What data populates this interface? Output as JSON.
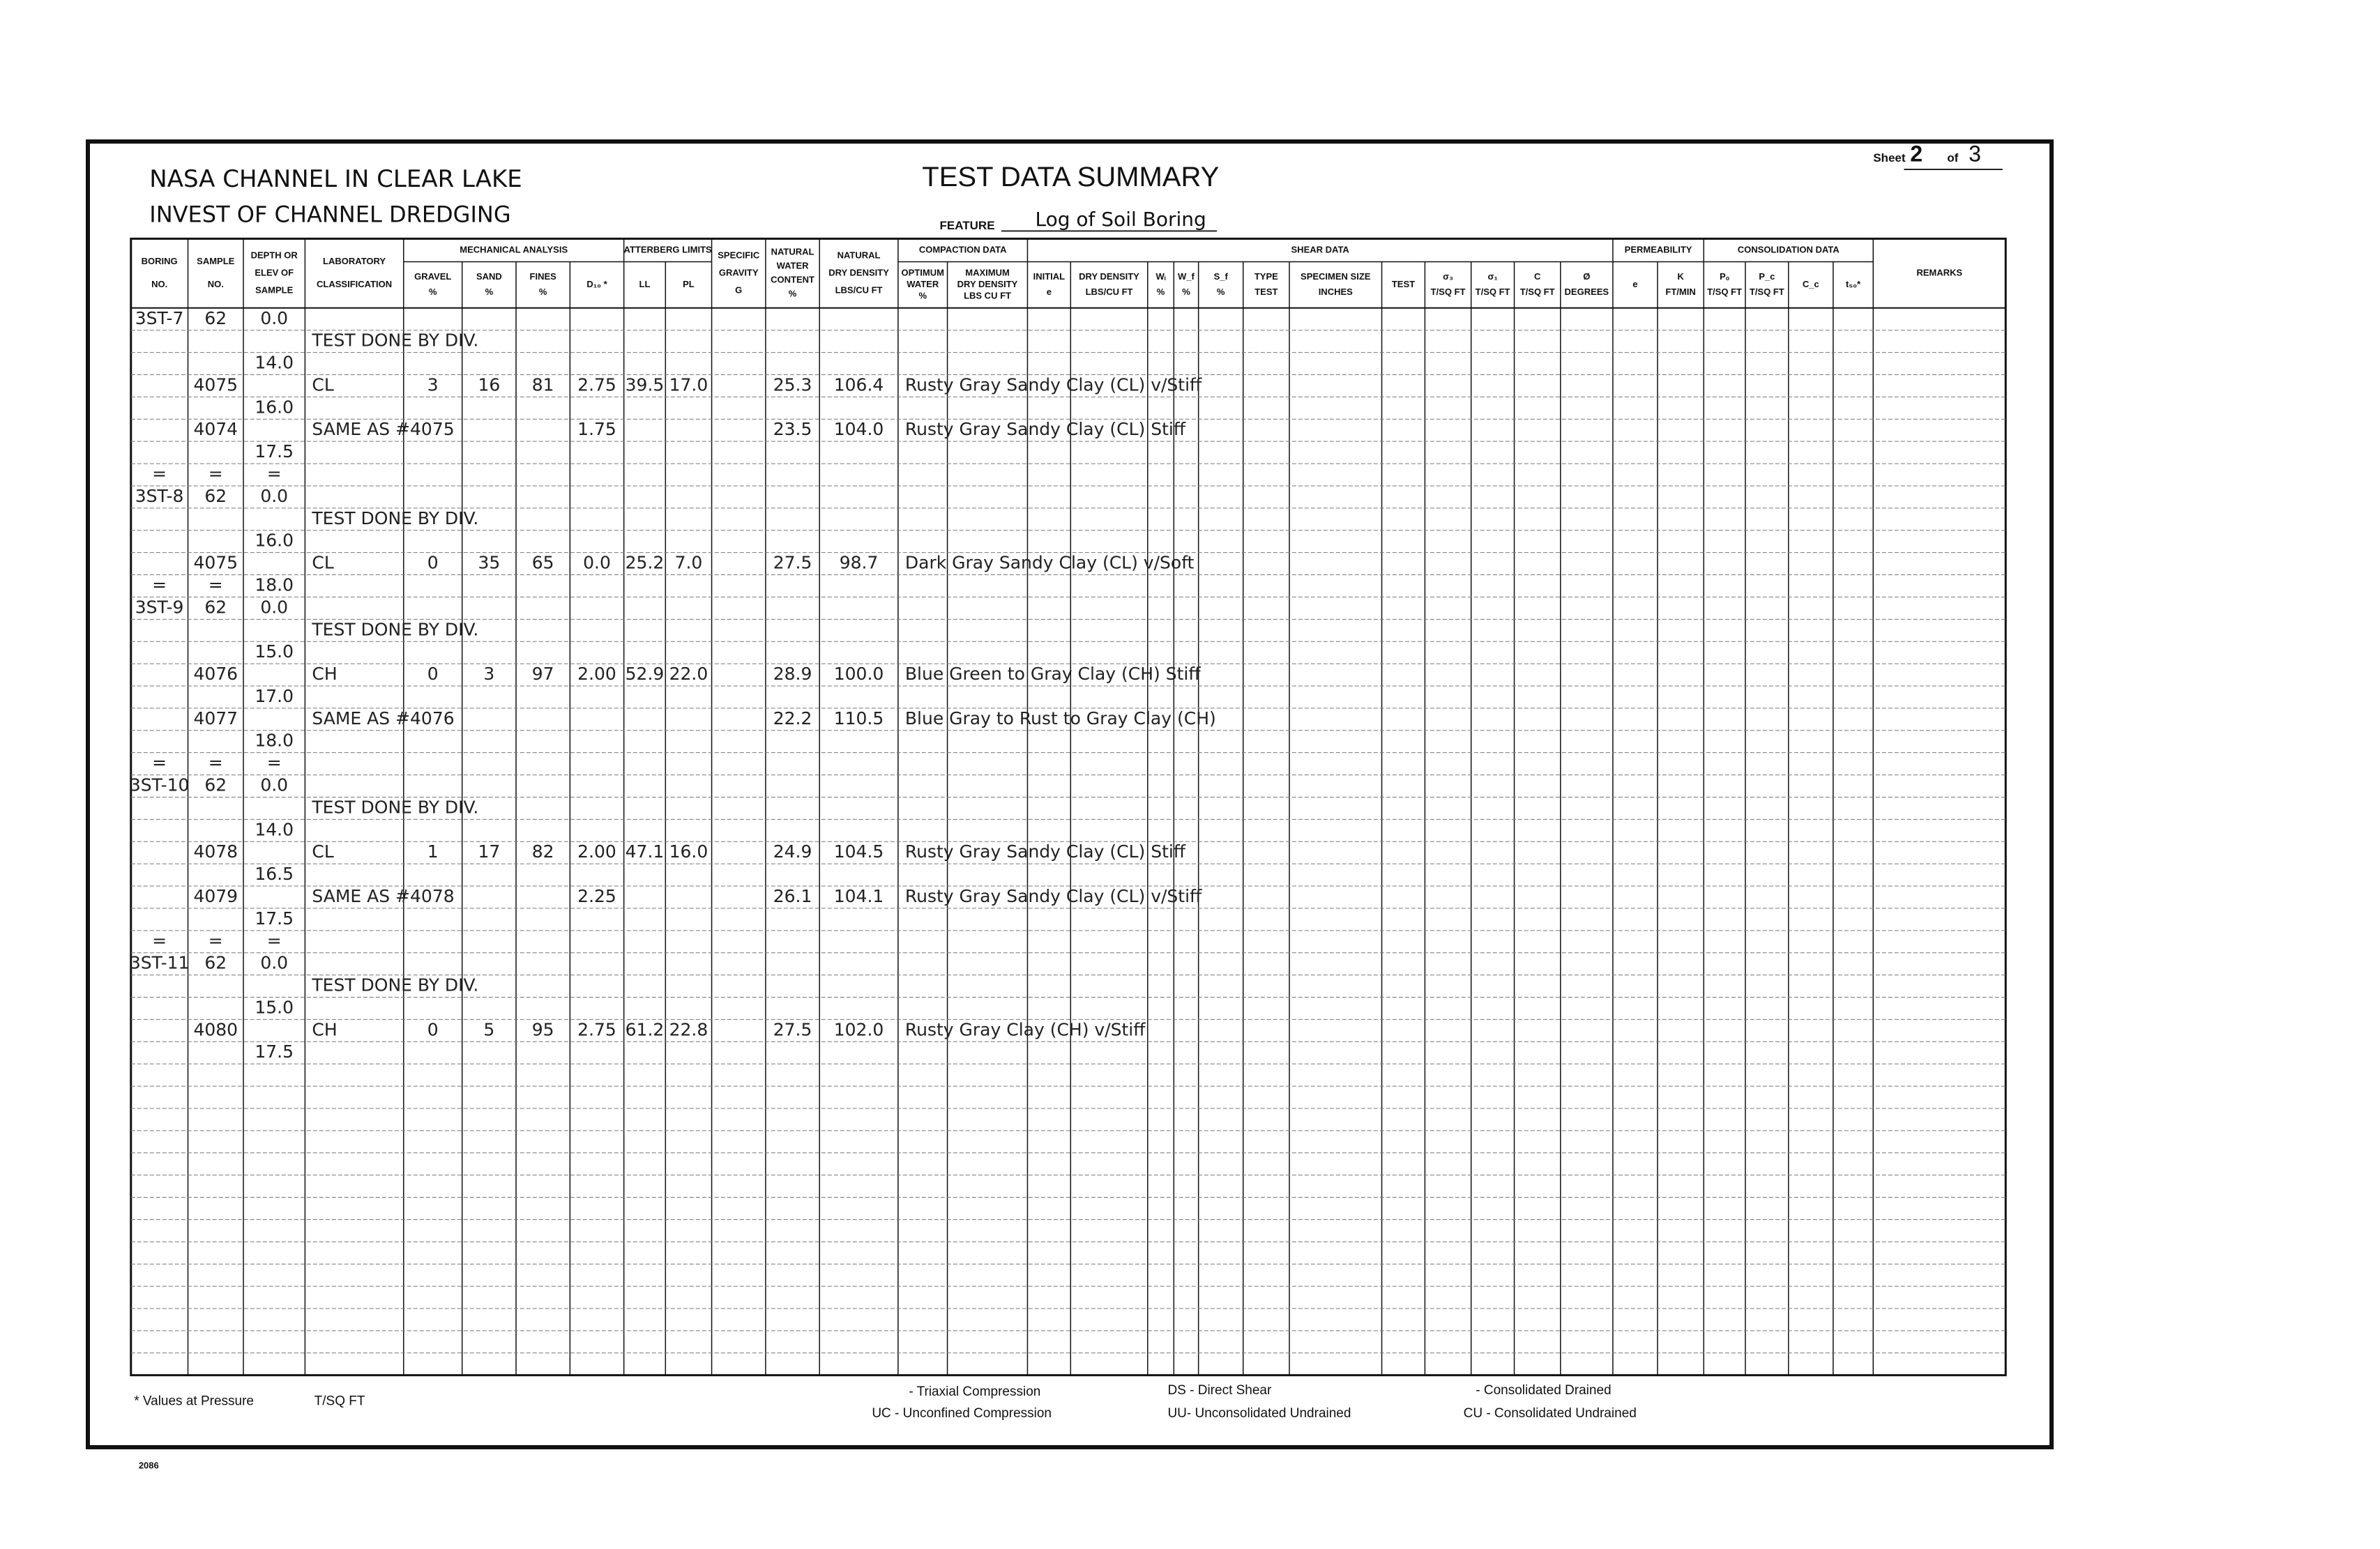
{
  "header": {
    "project": "NASA CHANNEL IN CLEAR LAKE",
    "subject": "INVEST OF CHANNEL DREDGING",
    "title": "TEST DATA SUMMARY",
    "feature_label": "FEATURE",
    "feature": "Log of Soil Boring",
    "sheet_label": "Sheet",
    "sheet": "2",
    "of_label": "of",
    "sheet_total": "3"
  },
  "table": {
    "columns": [
      {
        "label": [
          "BORING",
          "NO."
        ]
      },
      {
        "label": [
          "SAMPLE",
          "NO."
        ]
      },
      {
        "label": [
          "DEPTH OR",
          "ELEV OF",
          "SAMPLE"
        ]
      },
      {
        "label": [
          "LABORATORY",
          "CLASSIFICATION"
        ]
      },
      {
        "group": "MECHANICAL ANALYSIS",
        "columns": [
          {
            "label": [
              "GRAVEL"
            ],
            "unit": "%"
          },
          {
            "label": [
              "SAND"
            ],
            "unit": "%"
          },
          {
            "label": [
              "FINES"
            ],
            "unit": "%"
          },
          {
            "label": [
              "D₁₀ *"
            ]
          }
        ]
      },
      {
        "group": "ATTERBERG LIMITS",
        "columns": [
          {
            "label": [
              "LL"
            ]
          },
          {
            "label": [
              "PL"
            ]
          }
        ]
      },
      {
        "label": [
          "SPECIFIC",
          "GRAVITY",
          "G"
        ]
      },
      {
        "label": [
          "NATURAL",
          "WATER",
          "CONTENT"
        ],
        "unit": "%"
      },
      {
        "label": [
          "NATURAL",
          "DRY DENSITY",
          "LBS/CU FT"
        ]
      },
      {
        "group": "COMPACTION DATA",
        "columns": [
          {
            "label": [
              "OPTIMUM",
              "WATER"
            ],
            "unit": "%"
          },
          {
            "label": [
              "MAXIMUM",
              "DRY DENSITY",
              "LBS CU FT"
            ]
          }
        ]
      },
      {
        "group": "SHEAR DATA",
        "columns": [
          {
            "label": [
              "INITIAL",
              "e"
            ]
          },
          {
            "label": [
              "DRY DENSITY",
              "LBS/CU FT"
            ]
          },
          {
            "label": [
              "Wᵢ"
            ],
            "unit": "%"
          },
          {
            "label": [
              "W_f"
            ],
            "unit": "%"
          },
          {
            "label": [
              "S_f"
            ],
            "unit": "%"
          },
          {
            "label": [
              "TYPE",
              "TEST"
            ]
          },
          {
            "label": [
              "SPECIMEN SIZE",
              "INCHES"
            ]
          },
          {
            "label": [
              "TEST"
            ]
          },
          {
            "label": [
              "σ₃",
              "T/SQ FT"
            ]
          },
          {
            "label": [
              "σ₁",
              "T/SQ FT"
            ]
          },
          {
            "label": [
              "C",
              "T/SQ FT"
            ]
          },
          {
            "label": [
              "Ø",
              "DEGREES"
            ]
          }
        ]
      },
      {
        "group": "PERMEABILITY",
        "columns": [
          {
            "label": [
              "e"
            ]
          },
          {
            "label": [
              "K",
              "FT/MIN"
            ]
          }
        ]
      },
      {
        "group": "CONSOLIDATION DATA",
        "columns": [
          {
            "label": [
              "Pₒ",
              "T/SQ FT"
            ]
          },
          {
            "label": [
              "P_c",
              "T/SQ FT"
            ]
          },
          {
            "label": [
              "C_c"
            ]
          },
          {
            "label": [
              "t₅₀*"
            ]
          }
        ]
      },
      {
        "label": [
          "REMARKS"
        ]
      }
    ],
    "rows": [
      [
        "3ST-7",
        "62",
        "0.0"
      ],
      [
        null,
        null,
        null,
        "TEST DONE BY DIV."
      ],
      [
        null,
        null,
        "14.0"
      ],
      [
        null,
        "4075",
        null,
        "CL",
        "3",
        "16",
        "81",
        "2.75",
        "39.5",
        "17.0",
        null,
        "25.3",
        "106.4",
        "Rusty Gray Sandy Clay (CL) v/Stiff"
      ],
      [
        null,
        null,
        "16.0"
      ],
      [
        null,
        "4074",
        null,
        "SAME AS #4075",
        null,
        null,
        null,
        "1.75",
        null,
        null,
        null,
        "23.5",
        "104.0",
        "Rusty Gray Sandy Clay (CL) Stiff"
      ],
      [
        null,
        null,
        "17.5"
      ],
      [
        "=",
        "=",
        "="
      ],
      [
        "3ST-8",
        "62",
        "0.0"
      ],
      [
        null,
        null,
        null,
        "TEST DONE BY DIV."
      ],
      [
        null,
        null,
        "16.0"
      ],
      [
        null,
        "4075",
        null,
        "CL",
        "0",
        "35",
        "65",
        "0.0",
        "25.2",
        "7.0",
        null,
        "27.5",
        "98.7",
        "Dark Gray Sandy Clay (CL) v/Soft"
      ],
      [
        "=",
        "=",
        "18.0"
      ],
      [
        "3ST-9",
        "62",
        "0.0"
      ],
      [
        null,
        null,
        null,
        "TEST DONE BY DIV."
      ],
      [
        null,
        null,
        "15.0"
      ],
      [
        null,
        "4076",
        null,
        "CH",
        "0",
        "3",
        "97",
        "2.00",
        "52.9",
        "22.0",
        null,
        "28.9",
        "100.0",
        "Blue Green to Gray Clay (CH) Stiff"
      ],
      [
        null,
        null,
        "17.0"
      ],
      [
        null,
        "4077",
        null,
        "SAME AS #4076",
        null,
        null,
        null,
        null,
        null,
        null,
        null,
        "22.2",
        "110.5",
        "Blue Gray to Rust to Gray Clay (CH)"
      ],
      [
        null,
        null,
        "18.0"
      ],
      [
        "=",
        "=",
        "="
      ],
      [
        "3ST-10",
        "62",
        "0.0"
      ],
      [
        null,
        null,
        null,
        "TEST DONE BY DIV."
      ],
      [
        null,
        null,
        "14.0"
      ],
      [
        null,
        "4078",
        null,
        "CL",
        "1",
        "17",
        "82",
        "2.00",
        "47.1",
        "16.0",
        null,
        "24.9",
        "104.5",
        "Rusty Gray Sandy Clay (CL) Stiff"
      ],
      [
        null,
        null,
        "16.5"
      ],
      [
        null,
        "4079",
        null,
        "SAME AS #4078",
        null,
        null,
        null,
        "2.25",
        null,
        null,
        null,
        "26.1",
        "104.1",
        "Rusty Gray Sandy Clay (CL) v/Stiff"
      ],
      [
        null,
        null,
        "17.5"
      ],
      [
        "=",
        "=",
        "="
      ],
      [
        "3ST-11",
        "62",
        "0.0"
      ],
      [
        null,
        null,
        null,
        "TEST DONE BY DIV."
      ],
      [
        null,
        null,
        "15.0"
      ],
      [
        null,
        "4080",
        null,
        "CH",
        "0",
        "5",
        "95",
        "2.75",
        "61.2",
        "22.8",
        null,
        "27.5",
        "102.0",
        "Rusty Gray Clay (CH) v/Stiff"
      ],
      [
        null,
        null,
        "17.5"
      ]
    ]
  },
  "footer": {
    "note": "* Values at Pressure",
    "unit": "T/SQ FT",
    "triaxial": "- Triaxial Compression",
    "uc": "UC - Unconfined Compression",
    "ds": "DS - Direct Shear",
    "uu": "UU- Unconsolidated Undrained",
    "cd": "- Consolidated Drained",
    "cu": "CU - Consolidated Undrained",
    "form": "2086"
  }
}
